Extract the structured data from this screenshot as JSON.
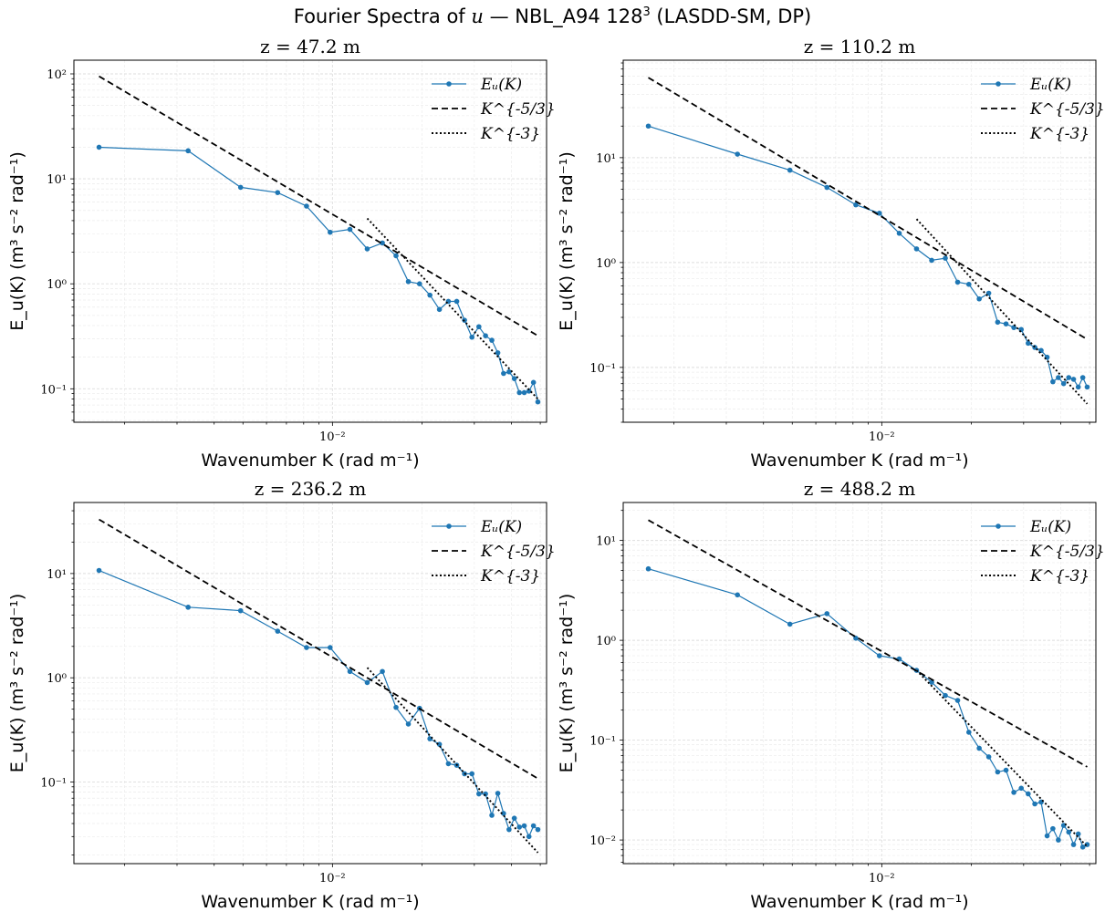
{
  "figure": {
    "title_prefix": "Fourier Spectra of",
    "title_var": "u",
    "title_suffix": "— NBL_A94 128",
    "title_exp": "3",
    "title_tail": "(LASDD-SM, DP)"
  },
  "chart_data": [
    {
      "type": "line",
      "title": "z = 47.2 m",
      "xlabel": "Wavenumber K (rad m⁻¹)",
      "ylabel": "E_u(K) (m³ s⁻² rad⁻¹)",
      "xscale": "log",
      "yscale": "log",
      "xlim": [
        0.00135,
        0.0525
      ],
      "ylim": [
        0.048,
        135
      ],
      "xticks": [
        {
          "value": 0.01,
          "label": "10⁻²"
        }
      ],
      "yticks": [
        {
          "value": 0.1,
          "label": "10⁻¹"
        },
        {
          "value": 1,
          "label": "10⁰"
        },
        {
          "value": 10,
          "label": "10¹"
        },
        {
          "value": 100,
          "label": "10²"
        }
      ],
      "grid": true,
      "legend": {
        "position": "top-right",
        "entries": [
          "Eᵤ(K)",
          "K^{-5/3}",
          "K^{-3}"
        ]
      },
      "series": [
        {
          "name": "E_u(K)",
          "style": "line-markers",
          "color": "#1f77b4",
          "x": [
            0.00164,
            0.00327,
            0.00491,
            0.00654,
            0.00818,
            0.00982,
            0.01145,
            0.01309,
            0.01472,
            0.01636,
            0.018,
            0.01963,
            0.02127,
            0.0229,
            0.02454,
            0.02618,
            0.02781,
            0.02945,
            0.03108,
            0.03272,
            0.03436,
            0.03599,
            0.03763,
            0.03926,
            0.0409,
            0.04254,
            0.04417,
            0.04581,
            0.04744,
            0.04908
          ],
          "y": [
            20,
            18.5,
            8.3,
            7.4,
            5.5,
            3.1,
            3.3,
            2.15,
            2.45,
            1.85,
            1.05,
            1.0,
            0.78,
            0.57,
            0.68,
            0.68,
            0.45,
            0.31,
            0.39,
            0.32,
            0.29,
            0.22,
            0.14,
            0.145,
            0.125,
            0.092,
            0.092,
            0.095,
            0.115,
            0.075
          ]
        },
        {
          "name": "K^{-5/3}",
          "style": "dashed",
          "color": "#000000",
          "x": [
            0.00164,
            0.04908
          ],
          "y": [
            95,
            0.32
          ]
        },
        {
          "name": "K^{-3}",
          "style": "dotted",
          "color": "#000000",
          "x": [
            0.01309,
            0.04908
          ],
          "y": [
            4.2,
            0.08
          ]
        }
      ]
    },
    {
      "type": "line",
      "title": "z = 110.2 m",
      "xlabel": "Wavenumber K (rad m⁻¹)",
      "ylabel": "E_u(K) (m³ s⁻² rad⁻¹)",
      "xscale": "log",
      "yscale": "log",
      "xlim": [
        0.00135,
        0.0525
      ],
      "ylim": [
        0.03,
        85
      ],
      "xticks": [
        {
          "value": 0.01,
          "label": "10⁻²"
        }
      ],
      "yticks": [
        {
          "value": 0.1,
          "label": "10⁻¹"
        },
        {
          "value": 1,
          "label": "10⁰"
        },
        {
          "value": 10,
          "label": "10¹"
        }
      ],
      "grid": true,
      "legend": {
        "position": "top-right",
        "entries": [
          "Eᵤ(K)",
          "K^{-5/3}",
          "K^{-3}"
        ]
      },
      "series": [
        {
          "name": "E_u(K)",
          "style": "line-markers",
          "color": "#1f77b4",
          "x": [
            0.00164,
            0.00327,
            0.00491,
            0.00654,
            0.00818,
            0.00982,
            0.01145,
            0.01309,
            0.01472,
            0.01636,
            0.018,
            0.01963,
            0.02127,
            0.0229,
            0.02454,
            0.02618,
            0.02781,
            0.02945,
            0.03108,
            0.03272,
            0.03436,
            0.03599,
            0.03763,
            0.03926,
            0.0409,
            0.04254,
            0.04417,
            0.04581,
            0.04744,
            0.04908
          ],
          "y": [
            20,
            10.8,
            7.6,
            5.2,
            3.55,
            2.95,
            1.9,
            1.35,
            1.05,
            1.1,
            0.65,
            0.62,
            0.45,
            0.51,
            0.27,
            0.26,
            0.24,
            0.23,
            0.17,
            0.155,
            0.145,
            0.125,
            0.073,
            0.08,
            0.07,
            0.08,
            0.077,
            0.065,
            0.08,
            0.065
          ]
        },
        {
          "name": "K^{-5/3}",
          "style": "dashed",
          "color": "#000000",
          "x": [
            0.00164,
            0.04908
          ],
          "y": [
            58,
            0.185
          ]
        },
        {
          "name": "K^{-3}",
          "style": "dotted",
          "color": "#000000",
          "x": [
            0.01309,
            0.04908
          ],
          "y": [
            2.6,
            0.045
          ]
        }
      ]
    },
    {
      "type": "line",
      "title": "z = 236.2 m",
      "xlabel": "Wavenumber K (rad m⁻¹)",
      "ylabel": "E_u(K) (m³ s⁻² rad⁻¹)",
      "xscale": "log",
      "yscale": "log",
      "xlim": [
        0.00135,
        0.0525
      ],
      "ylim": [
        0.0165,
        48
      ],
      "xticks": [
        {
          "value": 0.01,
          "label": "10⁻²"
        }
      ],
      "yticks": [
        {
          "value": 0.1,
          "label": "10⁻¹"
        },
        {
          "value": 1,
          "label": "10⁰"
        },
        {
          "value": 10,
          "label": "10¹"
        }
      ],
      "grid": true,
      "legend": {
        "position": "top-right",
        "entries": [
          "Eᵤ(K)",
          "K^{-5/3}",
          "K^{-3}"
        ]
      },
      "series": [
        {
          "name": "E_u(K)",
          "style": "line-markers",
          "color": "#1f77b4",
          "x": [
            0.00164,
            0.00327,
            0.00491,
            0.00654,
            0.00818,
            0.00982,
            0.01145,
            0.01309,
            0.01472,
            0.01636,
            0.018,
            0.01963,
            0.02127,
            0.0229,
            0.02454,
            0.02618,
            0.02781,
            0.02945,
            0.03108,
            0.03272,
            0.03436,
            0.03599,
            0.03763,
            0.03926,
            0.0409,
            0.04254,
            0.04417,
            0.04581,
            0.04744,
            0.04908
          ],
          "y": [
            10.7,
            4.75,
            4.4,
            2.8,
            1.95,
            1.95,
            1.15,
            0.9,
            1.15,
            0.52,
            0.36,
            0.51,
            0.26,
            0.23,
            0.15,
            0.145,
            0.12,
            0.12,
            0.077,
            0.077,
            0.048,
            0.078,
            0.05,
            0.035,
            0.045,
            0.037,
            0.038,
            0.03,
            0.038,
            0.035
          ]
        },
        {
          "name": "K^{-5/3}",
          "style": "dashed",
          "color": "#000000",
          "x": [
            0.00164,
            0.04908
          ],
          "y": [
            33,
            0.108
          ]
        },
        {
          "name": "K^{-3}",
          "style": "dotted",
          "color": "#000000",
          "x": [
            0.01309,
            0.04908
          ],
          "y": [
            1.25,
            0.021
          ]
        }
      ]
    },
    {
      "type": "line",
      "title": "z = 488.2 m",
      "xlabel": "Wavenumber K (rad m⁻¹)",
      "ylabel": "E_u(K) (m³ s⁻² rad⁻¹)",
      "xscale": "log",
      "yscale": "log",
      "xlim": [
        0.00135,
        0.0525
      ],
      "ylim": [
        0.0058,
        24
      ],
      "xticks": [
        {
          "value": 0.01,
          "label": "10⁻²"
        }
      ],
      "yticks": [
        {
          "value": 0.01,
          "label": "10⁻²"
        },
        {
          "value": 0.1,
          "label": "10⁻¹"
        },
        {
          "value": 1,
          "label": "10⁰"
        },
        {
          "value": 10,
          "label": "10¹"
        }
      ],
      "grid": true,
      "legend": {
        "position": "top-right",
        "entries": [
          "Eᵤ(K)",
          "K^{-5/3}",
          "K^{-3}"
        ]
      },
      "series": [
        {
          "name": "E_u(K)",
          "style": "line-markers",
          "color": "#1f77b4",
          "x": [
            0.00164,
            0.00327,
            0.00491,
            0.00654,
            0.00818,
            0.00982,
            0.01145,
            0.01309,
            0.01472,
            0.01636,
            0.018,
            0.01963,
            0.02127,
            0.0229,
            0.02454,
            0.02618,
            0.02781,
            0.02945,
            0.03108,
            0.03272,
            0.03436,
            0.03599,
            0.03763,
            0.03926,
            0.0409,
            0.04254,
            0.04417,
            0.04581,
            0.04744,
            0.04908
          ],
          "y": [
            5.2,
            2.85,
            1.45,
            1.85,
            1.05,
            0.7,
            0.65,
            0.5,
            0.38,
            0.28,
            0.25,
            0.12,
            0.083,
            0.068,
            0.048,
            0.05,
            0.03,
            0.033,
            0.029,
            0.023,
            0.024,
            0.011,
            0.013,
            0.01,
            0.014,
            0.012,
            0.009,
            0.0115,
            0.0085,
            0.009
          ]
        },
        {
          "name": "K^{-5/3}",
          "style": "dashed",
          "color": "#000000",
          "x": [
            0.00164,
            0.04908
          ],
          "y": [
            16,
            0.054
          ]
        },
        {
          "name": "K^{-3}",
          "style": "dotted",
          "color": "#000000",
          "x": [
            0.01309,
            0.04908
          ],
          "y": [
            0.5,
            0.0086
          ]
        }
      ]
    }
  ]
}
